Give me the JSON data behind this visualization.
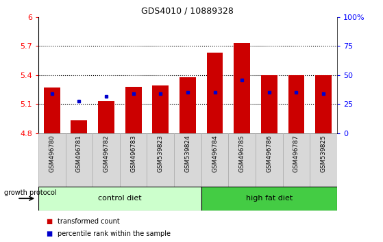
{
  "title": "GDS4010 / 10889328",
  "samples": [
    "GSM496780",
    "GSM496781",
    "GSM496782",
    "GSM496783",
    "GSM539823",
    "GSM539824",
    "GSM496784",
    "GSM496785",
    "GSM496786",
    "GSM496787",
    "GSM539825"
  ],
  "transformed_count": [
    5.27,
    4.93,
    5.13,
    5.28,
    5.29,
    5.38,
    5.63,
    5.73,
    5.4,
    5.4,
    5.4
  ],
  "percentile_rank_val": [
    5.21,
    5.13,
    5.18,
    5.21,
    5.21,
    5.22,
    5.22,
    5.35,
    5.22,
    5.22,
    5.21
  ],
  "ylim_left": [
    4.8,
    6.0
  ],
  "ylim_right": [
    0,
    100
  ],
  "yticks_left": [
    4.8,
    5.1,
    5.4,
    5.7,
    6.0
  ],
  "ytick_labels_left": [
    "4.8",
    "5.1",
    "5.4",
    "5.7",
    "6"
  ],
  "yticks_right": [
    0,
    25,
    50,
    75,
    100
  ],
  "ytick_labels_right": [
    "0",
    "25",
    "50",
    "75",
    "100%"
  ],
  "bar_color": "#cc0000",
  "blue_color": "#0000cc",
  "control_diet_indices": [
    0,
    1,
    2,
    3,
    4,
    5
  ],
  "high_fat_indices": [
    6,
    7,
    8,
    9,
    10
  ],
  "control_label": "control diet",
  "high_fat_label": "high fat diet",
  "growth_protocol_label": "growth protocol",
  "legend_red_label": "transformed count",
  "legend_blue_label": "percentile rank within the sample",
  "control_color": "#ccffcc",
  "high_fat_color": "#44cc44",
  "bar_width": 0.6,
  "baseline": 4.8,
  "grid_lines": [
    5.1,
    5.4,
    5.7
  ],
  "xlabel_bg": "#d8d8d8",
  "fig_bg": "#ffffff"
}
